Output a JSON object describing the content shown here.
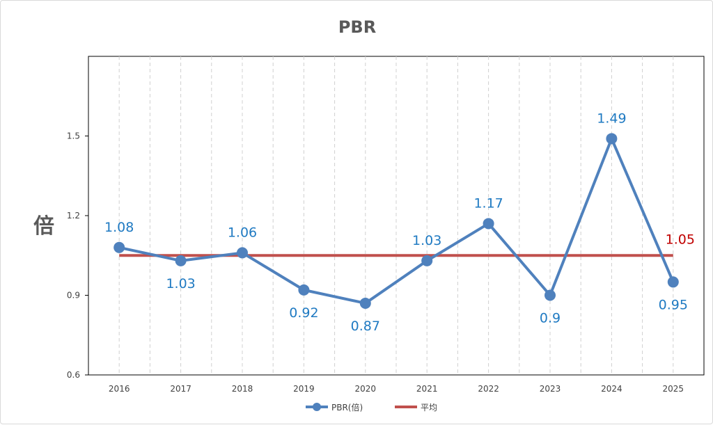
{
  "chart_data": {
    "type": "line",
    "title": "PBR",
    "ylabel": "倍",
    "xlabel": "",
    "categories": [
      "2016",
      "2017",
      "2018",
      "2019",
      "2020",
      "2021",
      "2022",
      "2023",
      "2024",
      "2025"
    ],
    "ylim": [
      0.6,
      1.8
    ],
    "yticks": [
      "0.6",
      "0.9",
      "1.2",
      "1.5"
    ],
    "grid": "vertical-dashed",
    "legend_position": "bottom",
    "series": [
      {
        "name": "PBR(倍)",
        "values": [
          1.08,
          1.03,
          1.06,
          0.92,
          0.87,
          1.03,
          1.17,
          0.9,
          1.49,
          0.95
        ],
        "labels": [
          "1.08",
          "1.03",
          "1.06",
          "0.92",
          "0.87",
          "1.03",
          "1.17",
          "0.9",
          "1.49",
          "0.95"
        ],
        "color": "#4f81bd",
        "label_color": "#1f7ac2"
      },
      {
        "name": "平均",
        "values": [
          1.05,
          1.05,
          1.05,
          1.05,
          1.05,
          1.05,
          1.05,
          1.05,
          1.05,
          1.05
        ],
        "end_label": "1.05",
        "color": "#c0504d",
        "label_color": "#c00000"
      }
    ]
  }
}
